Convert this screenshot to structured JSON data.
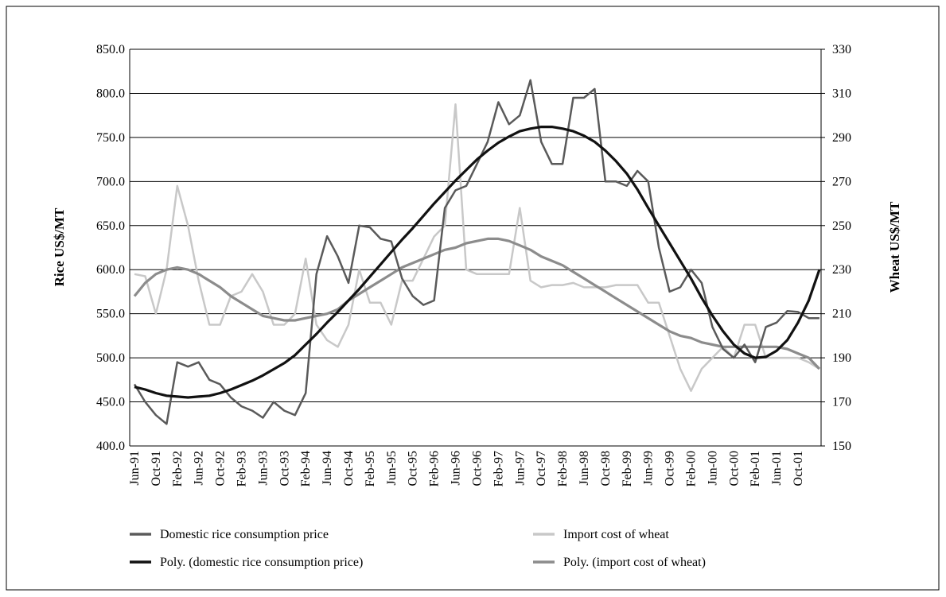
{
  "chart_data": {
    "type": "line",
    "y_label": "Rice US$/MT",
    "y2_label": "Wheat US$/MT",
    "categories": [
      "Jun-91",
      null,
      "Oct-91",
      null,
      "Feb-92",
      null,
      "Jun-92",
      null,
      "Oct-92",
      null,
      "Feb-93",
      null,
      "Jun-93",
      null,
      "Oct-93",
      null,
      "Feb-94",
      null,
      "Jun-94",
      null,
      "Oct-94",
      null,
      "Feb-95",
      null,
      "Jun-95",
      null,
      "Oct-95",
      null,
      "Feb-96",
      null,
      "Jun-96",
      null,
      "Oct-96",
      null,
      "Feb-97",
      null,
      "Jun-97",
      null,
      "Oct-97",
      null,
      "Feb-98",
      null,
      "Jun-98",
      null,
      "Oct-98",
      null,
      "Feb-99",
      null,
      "Jun-99",
      null,
      "Oct-99",
      null,
      "Feb-00",
      null,
      "Jun-00",
      null,
      "Oct-00",
      null,
      "Feb-01",
      null,
      "Jun-01",
      null,
      "Oct-01",
      null,
      null
    ],
    "ylim": [
      400,
      850
    ],
    "yticks": [
      {
        "value": 400,
        "label": "400.0"
      },
      {
        "value": 450,
        "label": "450.0"
      },
      {
        "value": 500,
        "label": "500.0"
      },
      {
        "value": 550,
        "label": "550.0"
      },
      {
        "value": 600,
        "label": "600.0"
      },
      {
        "value": 650,
        "label": "650.0"
      },
      {
        "value": 700,
        "label": "700.0"
      },
      {
        "value": 750,
        "label": "750.0"
      },
      {
        "value": 800,
        "label": "800.0"
      },
      {
        "value": 850,
        "label": "850.0"
      }
    ],
    "y2lim": [
      150,
      330
    ],
    "y2ticks": [
      150,
      170,
      190,
      210,
      230,
      250,
      270,
      290,
      310,
      330
    ],
    "grid": true,
    "series": [
      {
        "name": "Domestic rice consumption price",
        "color": "#5a5a5a",
        "width": 2.5,
        "values": [
          470,
          450,
          435,
          425,
          495,
          490,
          495,
          475,
          470,
          455,
          445,
          440,
          432,
          450,
          440,
          435,
          460,
          595,
          638,
          615,
          585,
          650,
          648,
          635,
          632,
          590,
          570,
          560,
          565,
          670,
          690,
          695,
          720,
          745,
          790,
          765,
          775,
          815,
          745,
          720,
          720,
          795,
          795,
          805,
          700,
          700,
          695,
          712,
          700,
          625,
          575,
          580,
          600,
          585,
          535,
          510,
          500,
          515,
          495,
          535,
          540,
          553,
          552,
          545,
          545
        ]
      },
      {
        "name": "Import cost of wheat",
        "color": "#c8c8c8",
        "width": 2.5,
        "axis": "y2",
        "values": [
          228,
          227,
          210,
          230,
          268,
          250,
          225,
          205,
          205,
          218,
          220,
          228,
          220,
          205,
          205,
          210,
          235,
          205,
          198,
          195,
          205,
          230,
          215,
          215,
          205,
          225,
          225,
          235,
          245,
          250,
          305,
          230,
          228,
          228,
          228,
          228,
          258,
          225,
          222,
          223,
          223,
          224,
          222,
          222,
          222,
          223,
          223,
          223,
          215,
          215,
          200,
          185,
          175,
          185,
          190,
          195,
          190,
          205,
          205,
          190,
          190,
          190,
          190,
          188,
          185
        ]
      },
      {
        "name": "Poly. (domestic rice consumption price)",
        "color": "#111111",
        "width": 3.2,
        "values": [
          467,
          464,
          460,
          457,
          456,
          455,
          456,
          457,
          460,
          464,
          469,
          474,
          480,
          487,
          494,
          503,
          515,
          527,
          540,
          552,
          565,
          578,
          592,
          606,
          620,
          634,
          647,
          661,
          675,
          688,
          701,
          713,
          725,
          735,
          744,
          751,
          757,
          760,
          762,
          762,
          760,
          757,
          752,
          745,
          735,
          723,
          709,
          691,
          670,
          650,
          630,
          610,
          590,
          568,
          548,
          530,
          515,
          505,
          500,
          501,
          508,
          520,
          540,
          565,
          600
        ]
      },
      {
        "name": "Poly. (import cost of wheat)",
        "color": "#8c8c8c",
        "width": 3.2,
        "axis": "y2",
        "values": [
          218,
          224,
          228,
          230,
          231,
          230,
          228,
          225,
          222,
          218,
          215,
          212,
          209,
          208,
          207,
          207,
          208,
          209,
          210,
          212,
          216,
          219,
          222,
          225,
          228,
          231,
          233,
          235,
          237,
          239,
          240,
          242,
          243,
          244,
          244,
          243,
          241,
          239,
          236,
          234,
          232,
          229,
          226,
          223,
          220,
          217,
          214,
          211,
          208,
          205,
          202,
          200,
          199,
          197,
          196,
          195,
          195,
          195,
          195,
          195,
          195,
          194,
          192,
          190,
          185
        ]
      }
    ]
  }
}
